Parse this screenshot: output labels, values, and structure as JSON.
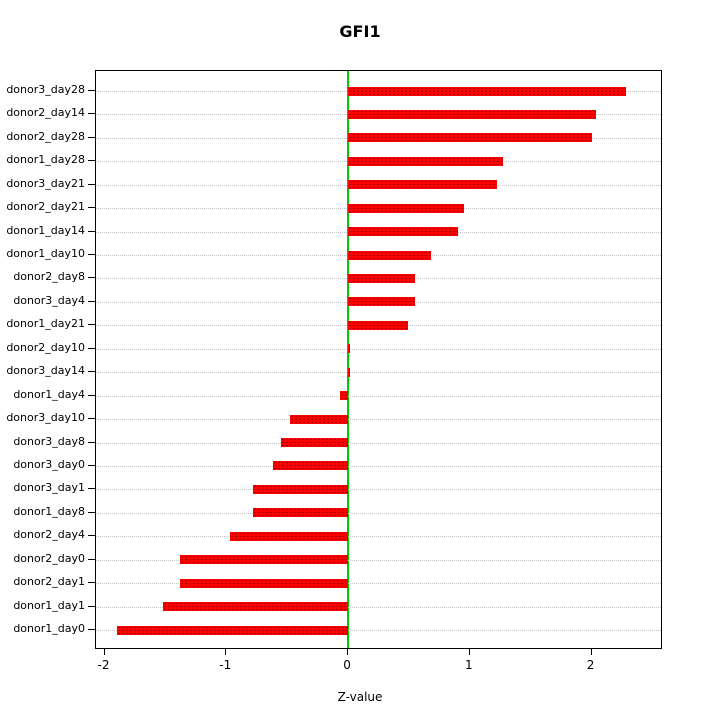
{
  "title": "GFI1",
  "chart_data": {
    "type": "bar",
    "orientation": "horizontal",
    "title": "GFI1",
    "xlabel": "Z-value",
    "ylabel": "",
    "grid": true,
    "legend": "none",
    "xlim": [
      -2.07,
      2.57
    ],
    "xticks": [
      -2,
      -1,
      0,
      1,
      2
    ],
    "bar_color": "#ff0000",
    "zero_line_color": "#00cc00",
    "categories": [
      "donor3_day28",
      "donor2_day14",
      "donor2_day28",
      "donor1_day28",
      "donor3_day21",
      "donor2_day21",
      "donor1_day14",
      "donor1_day10",
      "donor2_day8",
      "donor3_day4",
      "donor1_day21",
      "donor2_day10",
      "donor3_day14",
      "donor1_day4",
      "donor3_day10",
      "donor3_day8",
      "donor3_day0",
      "donor3_day1",
      "donor1_day8",
      "donor2_day4",
      "donor2_day0",
      "donor2_day1",
      "donor1_day1",
      "donor1_day0"
    ],
    "values": [
      2.28,
      2.04,
      2.0,
      1.27,
      1.22,
      0.95,
      0.9,
      0.68,
      0.55,
      0.55,
      0.49,
      0.0,
      0.01,
      -0.07,
      -0.48,
      -0.55,
      -0.62,
      -0.78,
      -0.78,
      -0.97,
      -1.38,
      -1.38,
      -1.52,
      -1.9
    ]
  }
}
